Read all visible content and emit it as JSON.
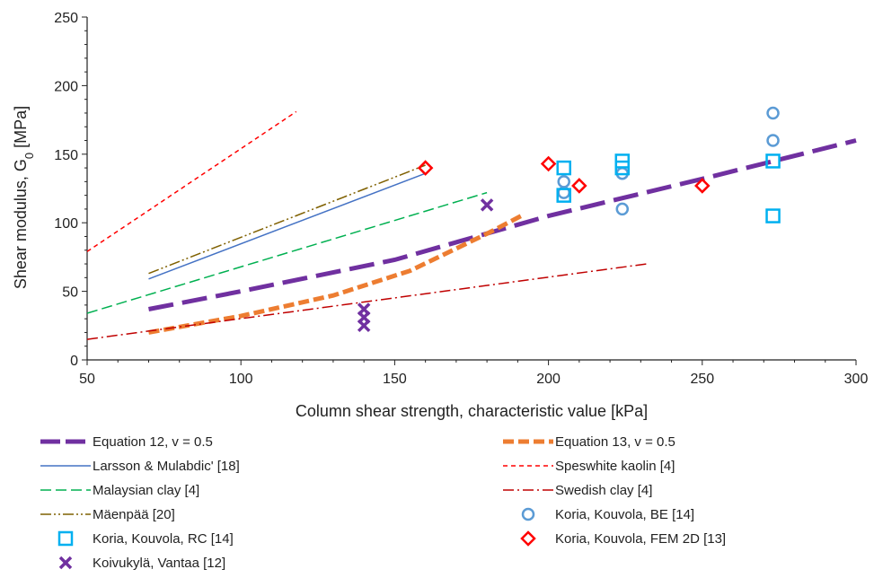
{
  "chart_data": {
    "type": "scatter",
    "title": "",
    "xlabel": "Column shear strength, characteristic value [kPa]",
    "ylabel_main": "Shear modulus, G",
    "ylabel_sub": "0",
    "ylabel_unit": " [MPa]",
    "xlim": [
      50,
      300
    ],
    "ylim": [
      0,
      250
    ],
    "x_ticks": [
      50,
      100,
      150,
      200,
      250,
      300
    ],
    "y_ticks": [
      0,
      50,
      100,
      150,
      200,
      250
    ],
    "grid": false,
    "legend_position": "bottom",
    "series": [
      {
        "name": "Equation 12, v = 0.5",
        "kind": "line",
        "color": "#7030A0",
        "dash": "long-dash",
        "width": 5,
        "points": [
          [
            70,
            37
          ],
          [
            100,
            50
          ],
          [
            150,
            73
          ],
          [
            200,
            105
          ],
          [
            250,
            132
          ],
          [
            300,
            160
          ]
        ]
      },
      {
        "name": "Equation 13, v = 0.5",
        "kind": "line",
        "color": "#ED7D31",
        "dash": "dash",
        "width": 5,
        "points": [
          [
            70,
            20
          ],
          [
            100,
            32
          ],
          [
            130,
            47
          ],
          [
            155,
            65
          ],
          [
            180,
            92
          ],
          [
            192,
            106
          ]
        ]
      },
      {
        "name": "Larsson & Mulabdic' [18]",
        "kind": "line",
        "color": "#4472C4",
        "dash": "solid",
        "width": 1.5,
        "points": [
          [
            70,
            59
          ],
          [
            160,
            136
          ]
        ]
      },
      {
        "name": "Speswhite kaolin [4]",
        "kind": "line",
        "color": "#FF0000",
        "dash": "short-dash",
        "width": 1.5,
        "points": [
          [
            50,
            79
          ],
          [
            118,
            181
          ]
        ]
      },
      {
        "name": "Malaysian clay [4]",
        "kind": "line",
        "color": "#00B050",
        "dash": "dash",
        "width": 1.5,
        "points": [
          [
            50,
            34
          ],
          [
            180,
            122
          ]
        ]
      },
      {
        "name": "Swedish clay [4]",
        "kind": "line",
        "color": "#C00000",
        "dash": "dash-dot",
        "width": 1.5,
        "points": [
          [
            50,
            15
          ],
          [
            232,
            70
          ]
        ]
      },
      {
        "name": "Mäenpää [20]",
        "kind": "line",
        "color": "#7F6000",
        "dash": "dash-dot-dot",
        "width": 1.5,
        "points": [
          [
            70,
            63
          ],
          [
            160,
            142
          ]
        ]
      },
      {
        "name": "Koria, Kouvola, BE [14]",
        "kind": "marker",
        "marker": "circle",
        "color": "#5B9BD5",
        "points": [
          [
            205,
            130
          ],
          [
            205,
            122
          ],
          [
            224,
            136
          ],
          [
            224,
            110
          ],
          [
            273,
            180
          ],
          [
            273,
            160
          ]
        ]
      },
      {
        "name": "Koria, Kouvola, RC [14]",
        "kind": "marker",
        "marker": "square",
        "color": "#00B0F0",
        "points": [
          [
            205,
            140
          ],
          [
            205,
            120
          ],
          [
            224,
            145
          ],
          [
            224,
            140
          ],
          [
            273,
            145
          ],
          [
            273,
            105
          ]
        ]
      },
      {
        "name": "Koria, Kouvola, FEM 2D [13]",
        "kind": "marker",
        "marker": "diamond",
        "color": "#FF0000",
        "points": [
          [
            160,
            140
          ],
          [
            200,
            143
          ],
          [
            210,
            127
          ],
          [
            250,
            127
          ]
        ]
      },
      {
        "name": "Koivukylä, Vantaa [12]",
        "kind": "marker",
        "marker": "x",
        "color": "#7030A0",
        "points": [
          [
            180,
            113
          ],
          [
            140,
            37
          ],
          [
            140,
            31
          ],
          [
            140,
            25
          ]
        ]
      }
    ]
  }
}
